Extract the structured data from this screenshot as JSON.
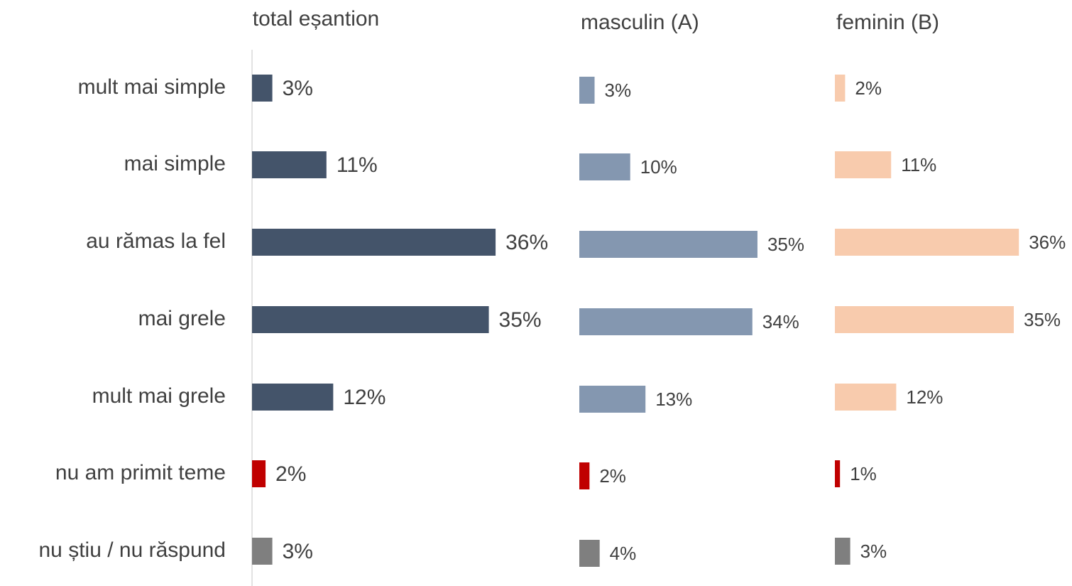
{
  "chart_data": [
    {
      "type": "bar",
      "orientation": "horizontal",
      "title": "total eșantion",
      "categories": [
        "mult mai simple",
        "mai simple",
        "au rămas la fel",
        "mai grele",
        "mult mai grele",
        "nu am primit teme",
        "nu știu / nu răspund"
      ],
      "values": [
        3,
        11,
        36,
        35,
        12,
        2,
        3
      ],
      "value_labels": [
        "3%",
        "11%",
        "36%",
        "35%",
        "12%",
        "2%",
        "3%"
      ],
      "colors": [
        "#44546a",
        "#44546a",
        "#44546a",
        "#44546a",
        "#44546a",
        "#c00000",
        "#7f7f7f"
      ]
    },
    {
      "type": "bar",
      "orientation": "horizontal",
      "title": "masculin (A)",
      "values": [
        3,
        10,
        35,
        34,
        13,
        2,
        4
      ],
      "value_labels": [
        "3%",
        "10%",
        "35%",
        "34%",
        "13%",
        "2%",
        "4%"
      ],
      "colors": [
        "#8497b0",
        "#8497b0",
        "#8497b0",
        "#8497b0",
        "#8497b0",
        "#c00000",
        "#7f7f7f"
      ]
    },
    {
      "type": "bar",
      "orientation": "horizontal",
      "title": "feminin (B)",
      "values": [
        2,
        11,
        36,
        35,
        12,
        1,
        3
      ],
      "value_labels": [
        "2%",
        "11%",
        "36%",
        "35%",
        "12%",
        "1%",
        "3%"
      ],
      "colors": [
        "#f8cbad",
        "#f8cbad",
        "#f8cbad",
        "#f8cbad",
        "#f8cbad",
        "#c00000",
        "#7f7f7f"
      ]
    }
  ]
}
